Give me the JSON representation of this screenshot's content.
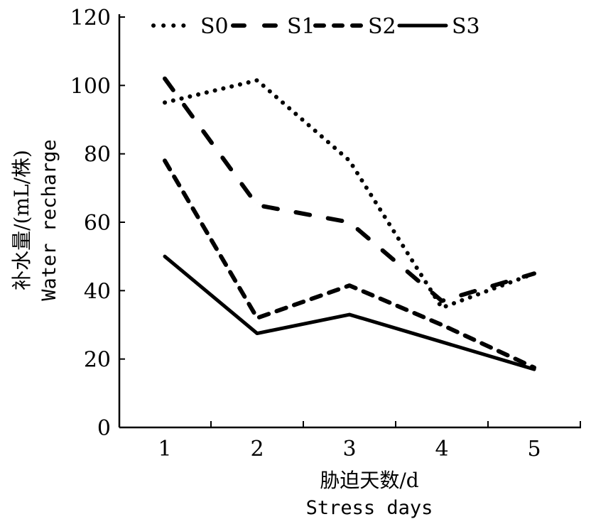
{
  "chart_data": {
    "type": "line",
    "title": "",
    "xlabel": "胁迫天数/d",
    "xlabel_en": "Stress days",
    "ylabel": "补水量/(mL/株)",
    "ylabel_en": "Water recharge",
    "x": [
      1,
      2,
      3,
      4,
      5
    ],
    "x_tick_labels": [
      "1",
      "2",
      "3",
      "4",
      "5"
    ],
    "ylim": [
      0,
      120
    ],
    "y_ticks": [
      0,
      20,
      40,
      60,
      80,
      100,
      120
    ],
    "y_tick_labels": [
      "0",
      "20",
      "40",
      "60",
      "80",
      "100",
      "120"
    ],
    "grid": false,
    "legend_position": "top",
    "series": [
      {
        "name": "S0",
        "style": "dotted",
        "values": [
          95,
          101.5,
          78,
          35,
          45
        ]
      },
      {
        "name": "S1",
        "style": "long-dash",
        "values": [
          102,
          65,
          60,
          37,
          45
        ]
      },
      {
        "name": "S2",
        "style": "dashed",
        "values": [
          78,
          32,
          41.5,
          30,
          17.5
        ]
      },
      {
        "name": "S3",
        "style": "solid",
        "values": [
          50,
          27.5,
          33,
          25,
          17
        ]
      }
    ],
    "line_color": "#000000"
  }
}
